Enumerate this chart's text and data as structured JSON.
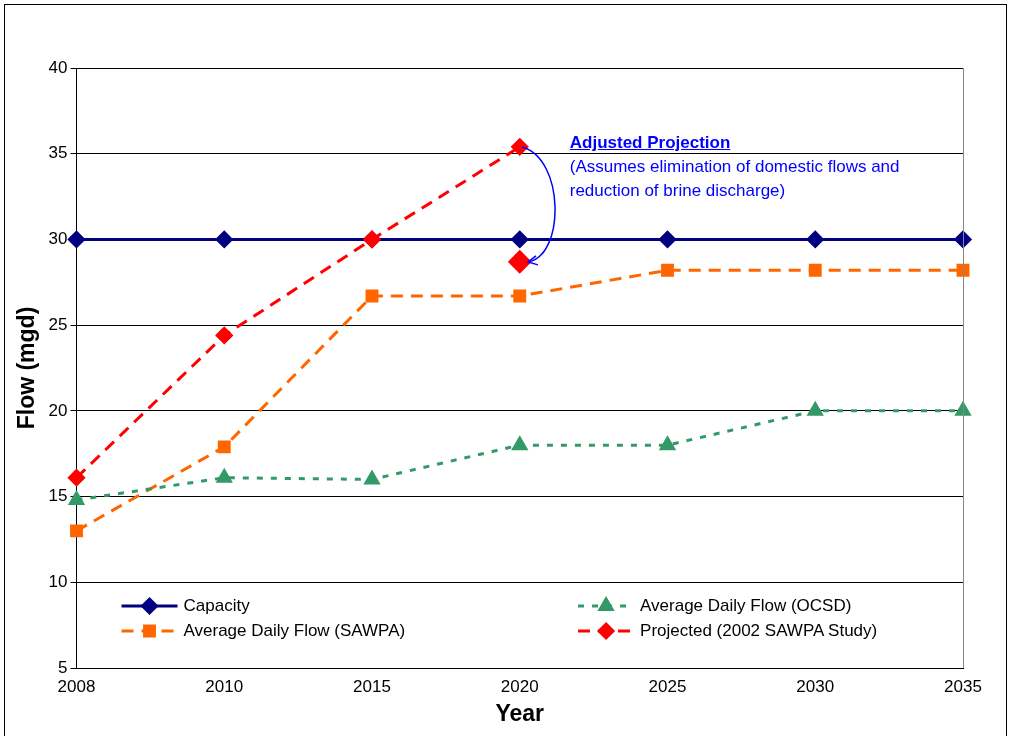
{
  "chart_data": {
    "type": "line",
    "xlabel": "Year",
    "ylabel": "Flow (mgd)",
    "categories": [
      "2008",
      "2010",
      "2015",
      "2020",
      "2025",
      "2030",
      "2035"
    ],
    "ylim": [
      5,
      40
    ],
    "yticks": [
      5,
      10,
      15,
      20,
      25,
      30,
      35,
      40
    ],
    "grid": "y",
    "legend": "bottom",
    "series": [
      {
        "name": "Capacity",
        "color": "#000080",
        "values": [
          30,
          30,
          30,
          30,
          30,
          30,
          30
        ],
        "marker": "diamond",
        "line_style": "solid"
      },
      {
        "name": "Average Daily Flow (SAWPA)",
        "color": "#ff6600",
        "values": [
          13,
          17.9,
          26.7,
          26.7,
          28.2,
          28.2,
          28.2
        ],
        "marker": "square",
        "line_style": "dashed"
      },
      {
        "name": "Average Daily Flow (OCSD)",
        "color": "#339966",
        "values": [
          14.8,
          16.1,
          16,
          18,
          18,
          20,
          20
        ],
        "marker": "triangle",
        "line_style": "dotted"
      },
      {
        "name": "Projected (2002 SAWPA Study)",
        "color": "#ff0000",
        "values": [
          16.1,
          24.4,
          30,
          35.4,
          null,
          null,
          null
        ],
        "marker": "diamond",
        "line_style": "dashed"
      },
      {
        "type": "scatter",
        "color": "#ff0000",
        "values": [
          null,
          null,
          null,
          28.7,
          null,
          null,
          null
        ],
        "marker": "diamond"
      }
    ],
    "annotations": [
      "Adjusted Projection",
      "(Assumes elimination of domestic flows and reduction of brine discharge)"
    ]
  }
}
